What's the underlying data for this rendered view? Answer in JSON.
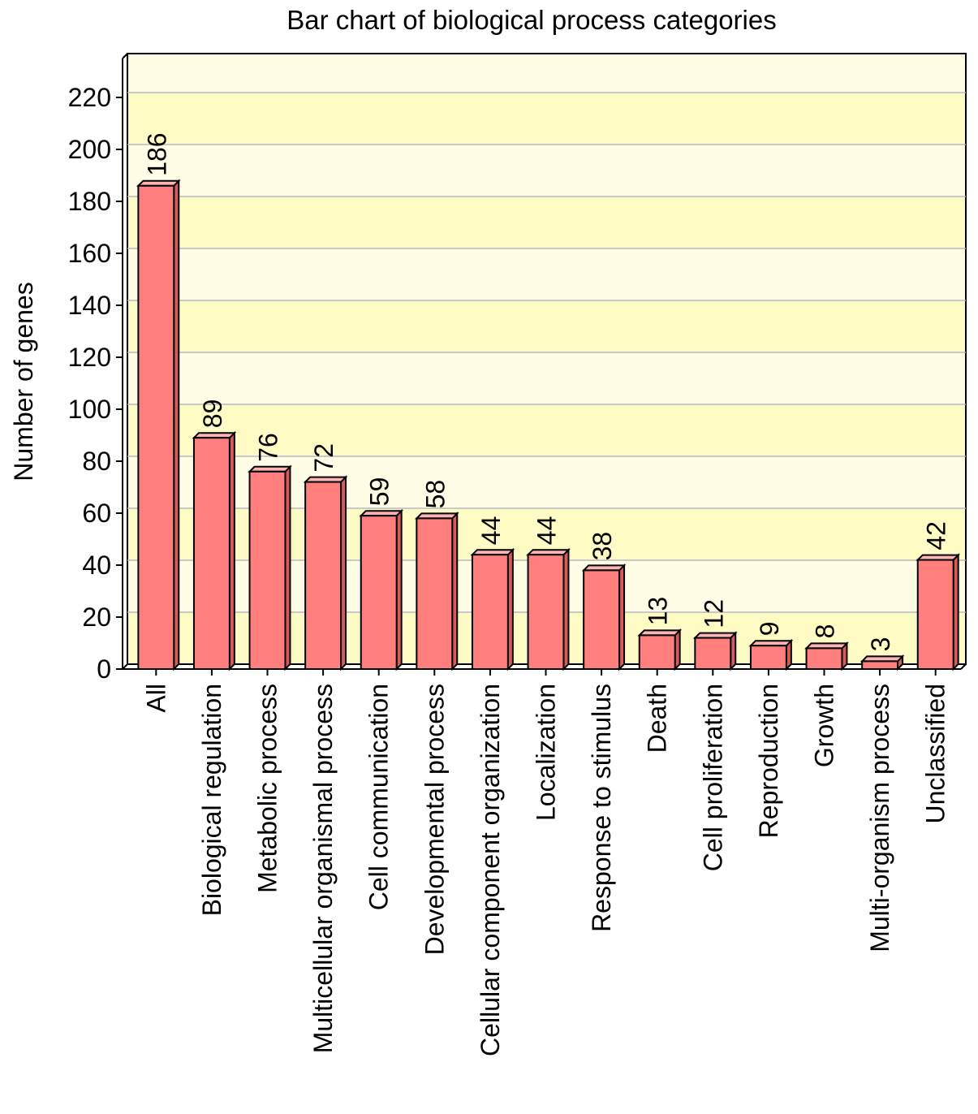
{
  "chart_data": {
    "type": "bar",
    "title": "Bar chart of biological process categories",
    "xlabel": "",
    "ylabel": "Number of genes",
    "ylim": [
      0,
      235
    ],
    "yticks": [
      0,
      20,
      40,
      60,
      80,
      100,
      120,
      140,
      160,
      180,
      200,
      220
    ],
    "grid": true,
    "legend": "none",
    "categories": [
      "All",
      "Biological regulation",
      "Metabolic process",
      "Multicellular organismal process",
      "Cell communication",
      "Developmental process",
      "Cellular component organization",
      "Localization",
      "Response to stimulus",
      "Death",
      "Cell proliferation",
      "Reproduction",
      "Growth",
      "Multi-organism process",
      "Unclassified"
    ],
    "values": [
      186,
      89,
      76,
      72,
      59,
      58,
      44,
      44,
      38,
      13,
      12,
      9,
      8,
      3,
      42
    ],
    "data_labels": [
      "186",
      "89",
      "76",
      "72",
      "59",
      "58",
      "44",
      "44",
      "38",
      "13",
      "12",
      "9",
      "8",
      "3",
      "42"
    ],
    "colors": {
      "bar_front": "#ff7f7f",
      "bar_top": "#ffb3b3",
      "bar_side": "#d85a5a",
      "band_a": "#fffbc4",
      "band_b": "#fffde6",
      "grid": "#b8b8c8"
    }
  }
}
